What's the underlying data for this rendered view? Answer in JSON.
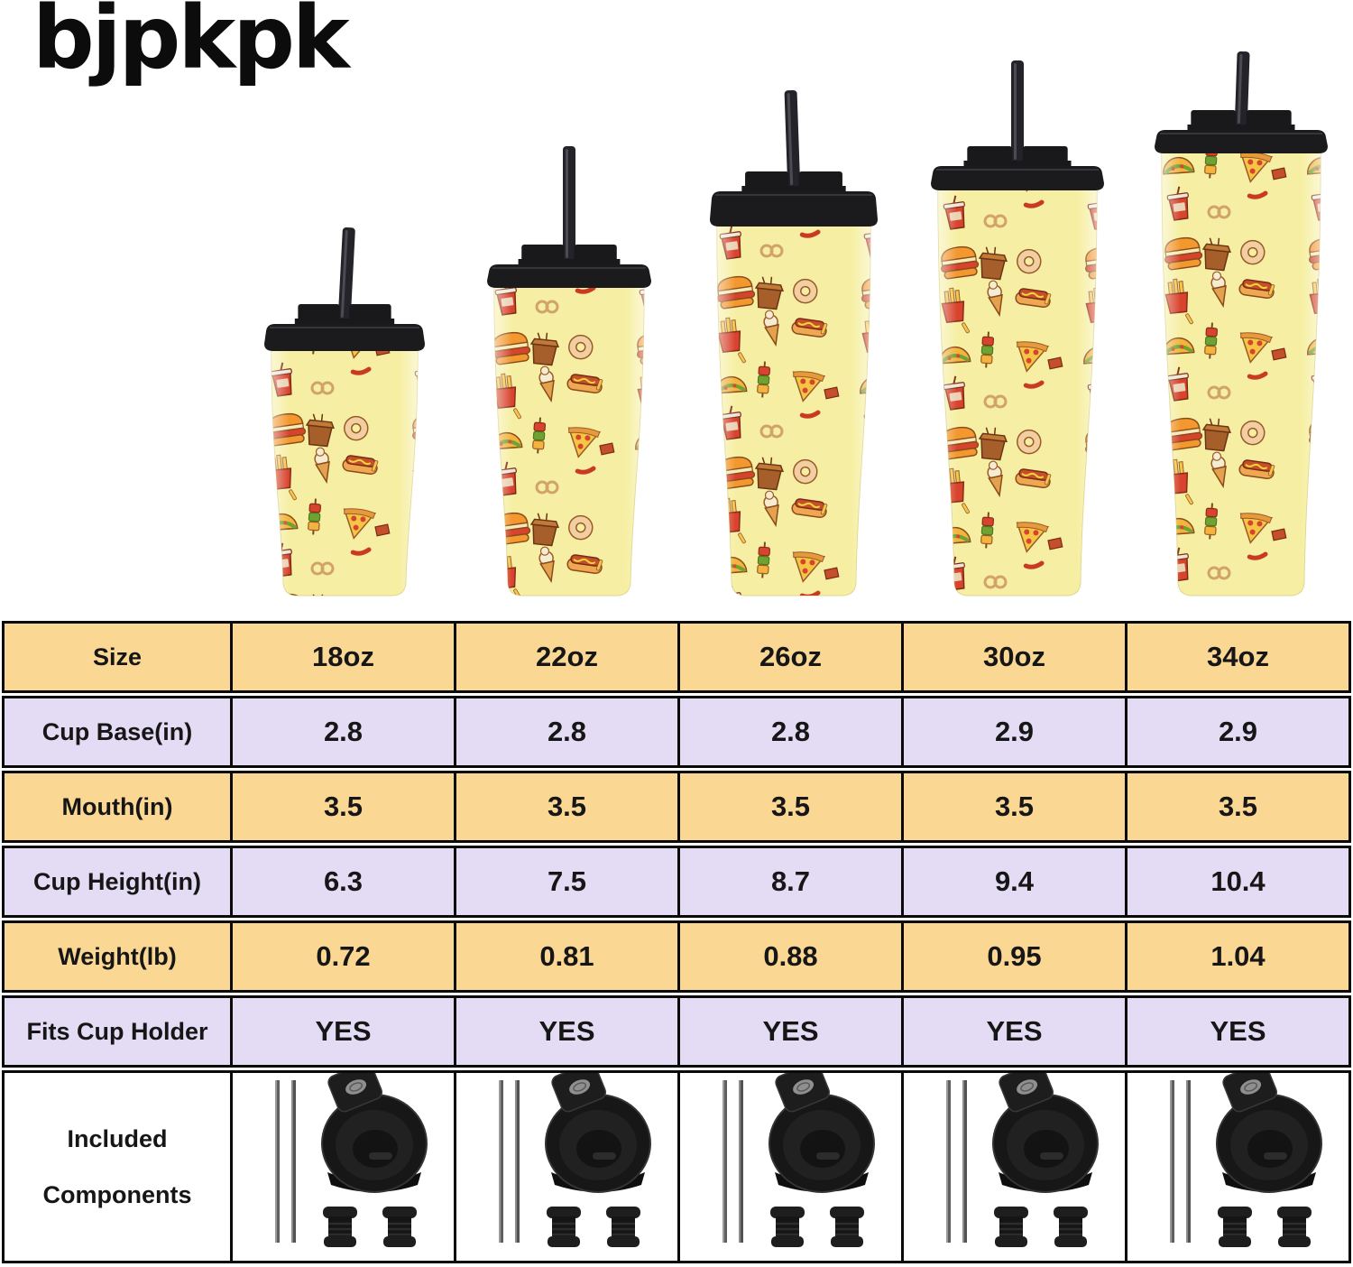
{
  "brand": {
    "name": "bjpkpk"
  },
  "hero": {
    "tumblers": [
      {
        "size": "18oz"
      },
      {
        "size": "22oz"
      },
      {
        "size": "26oz"
      },
      {
        "size": "30oz"
      },
      {
        "size": "34oz"
      }
    ],
    "pattern_icons": [
      "burger",
      "fries",
      "pizza-slice",
      "taco",
      "hot-dog",
      "donut",
      "ice-cream-cone",
      "soda-cup",
      "kebab-skewer",
      "pretzel-rings",
      "takeout-box",
      "chili"
    ],
    "body_color": "#f6efa3",
    "lid_color": "#1b1b1b",
    "straw_color": "#232329"
  },
  "spec_table": {
    "rows": [
      {
        "label": "Size",
        "values": [
          "18oz",
          "22oz",
          "26oz",
          "30oz",
          "34oz"
        ]
      },
      {
        "label": "Cup Base(in)",
        "values": [
          "2.8",
          "2.8",
          "2.8",
          "2.9",
          "2.9"
        ]
      },
      {
        "label": "Mouth(in)",
        "values": [
          "3.5",
          "3.5",
          "3.5",
          "3.5",
          "3.5"
        ]
      },
      {
        "label": "Cup Height(in)",
        "values": [
          "6.3",
          "7.5",
          "8.7",
          "9.4",
          "10.4"
        ]
      },
      {
        "label": "Weight(lb)",
        "values": [
          "0.72",
          "0.81",
          "0.88",
          "0.95",
          "1.04"
        ]
      },
      {
        "label": "Fits Cup Holder",
        "values": [
          "YES",
          "YES",
          "YES",
          "YES",
          "YES"
        ]
      }
    ],
    "components_row": {
      "label": "Included Components",
      "icons": [
        "metal-straws-icon",
        "flip-top-lid-icon",
        "straw-stoppers-icon"
      ]
    }
  },
  "colors": {
    "row_yellow": "#fbd794",
    "row_purple": "#e4dbf4",
    "table_border": "#000000",
    "background": "#ffffff",
    "cup_body_yellow": "#f6efa3",
    "lid_black": "#1b1b1b"
  }
}
